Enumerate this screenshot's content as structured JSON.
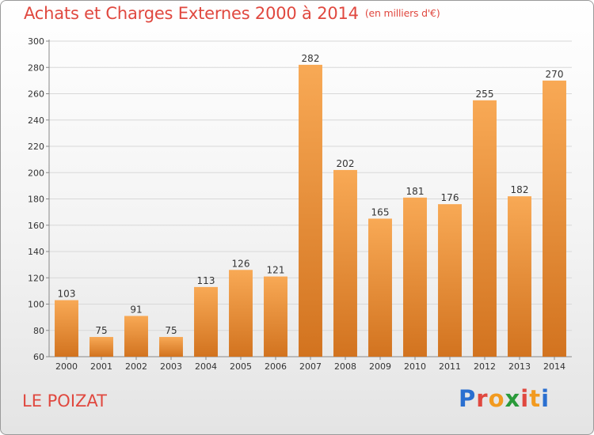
{
  "header": {
    "title": "Achats et Charges Externes 2000 à 2014",
    "unit": "(en milliers d'€)"
  },
  "footer": {
    "place": "LE POIZAT",
    "logo": "Proxiti",
    "logo_colors": [
      "#2a6fd0",
      "#e0483f",
      "#f29a1f",
      "#2a9a3a",
      "#e0483f",
      "#f29a1f",
      "#2a6fd0"
    ]
  },
  "colors": {
    "bar_light": "#f8a955",
    "bar_dark": "#d2731f",
    "title": "#e0483f",
    "grid": "#d8d8d8"
  },
  "chart_data": {
    "type": "bar",
    "title": "Achats et Charges Externes 2000 à 2014",
    "subtitle": "(en milliers d'€)",
    "categories": [
      "2000",
      "2001",
      "2002",
      "2003",
      "2004",
      "2005",
      "2006",
      "2007",
      "2008",
      "2009",
      "2010",
      "2011",
      "2012",
      "2013",
      "2014"
    ],
    "values": [
      103,
      75,
      91,
      75,
      113,
      126,
      121,
      282,
      202,
      165,
      181,
      176,
      255,
      182,
      270
    ],
    "ylim": [
      60,
      300
    ],
    "yticks": [
      60,
      80,
      100,
      120,
      140,
      160,
      180,
      200,
      220,
      240,
      260,
      280,
      300
    ],
    "grid": true,
    "data_labels": true
  }
}
